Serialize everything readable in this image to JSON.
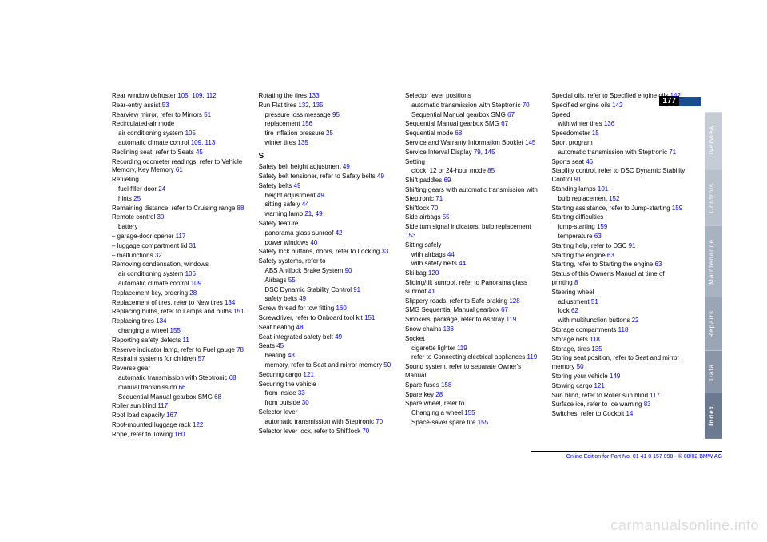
{
  "page_number": "177",
  "side_tabs": [
    "Overview",
    "Controls",
    "Maintenance",
    "Repairs",
    "Data",
    "Index"
  ],
  "footer": "Online Edition for Part No. 01 41 0 157 098 - © 08/02 BMW AG",
  "watermark": "carmanualsonline.info",
  "columns": [
    [
      {
        "t": "Rear window defroster",
        "p": [
          "105",
          "109",
          "112"
        ]
      },
      {
        "t": "Rear-entry assist",
        "p": [
          "53"
        ]
      },
      {
        "t": "Rearview mirror, refer to Mirrors",
        "p": [
          "51"
        ]
      },
      {
        "t": "Recirculated-air mode"
      },
      {
        "t": " air conditioning system",
        "p": [
          "105"
        ]
      },
      {
        "t": " automatic climate control",
        "p": [
          "109",
          "113"
        ]
      },
      {
        "t": "Reclining seat, refer to Seats",
        "p": [
          "45"
        ]
      },
      {
        "t": "Recording odometer readings, refer to Vehicle Memory, Key Memory",
        "p": [
          "61"
        ]
      },
      {
        "t": "Refueling"
      },
      {
        "t": " fuel filler door",
        "p": [
          "24"
        ]
      },
      {
        "t": " hints",
        "p": [
          "25"
        ]
      },
      {
        "t": "Remaining distance, refer to Cruising range",
        "p": [
          "88"
        ]
      },
      {
        "t": "Remote control",
        "p": [
          "30"
        ]
      },
      {
        "t": " battery"
      },
      {
        "t": "– garage-door opener",
        "p": [
          "117"
        ]
      },
      {
        "t": "– luggage compartment lid",
        "p": [
          "31"
        ]
      },
      {
        "t": "– malfunctions",
        "p": [
          "32"
        ]
      },
      {
        "t": "Removing condensation, windows"
      },
      {
        "t": " air conditioning system",
        "p": [
          "106"
        ]
      },
      {
        "t": " automatic climate control",
        "p": [
          "109"
        ]
      },
      {
        "t": "Replacement key, ordering",
        "p": [
          "28"
        ]
      },
      {
        "t": "Replacement of tires, refer to New tires",
        "p": [
          "134"
        ]
      },
      {
        "t": "Replacing bulbs, refer to Lamps and bulbs",
        "p": [
          "151"
        ]
      },
      {
        "t": "Replacing tires",
        "p": [
          "134"
        ]
      },
      {
        "t": " changing a wheel",
        "p": [
          "155"
        ]
      },
      {
        "t": "Reporting safety defects",
        "p": [
          "11"
        ]
      },
      {
        "t": "Reserve indicator lamp, refer to Fuel gauge",
        "p": [
          "78"
        ]
      },
      {
        "t": "Restraint systems for children",
        "p": [
          "57"
        ]
      },
      {
        "t": "Reverse gear"
      },
      {
        "t": " automatic transmission with Steptronic",
        "p": [
          "68"
        ]
      },
      {
        "t": " manual transmission",
        "p": [
          "66"
        ]
      },
      {
        "t": " Sequential Manual gearbox SMG",
        "p": [
          "68"
        ]
      },
      {
        "t": "Roller sun blind",
        "p": [
          "117"
        ]
      },
      {
        "t": "Roof load capacity",
        "p": [
          "167"
        ]
      },
      {
        "t": "Roof-mounted luggage rack",
        "p": [
          "122"
        ]
      },
      {
        "t": "Rope, refer to Towing",
        "p": [
          "160"
        ]
      }
    ],
    [
      {
        "t": "Rotating the tires",
        "p": [
          "133"
        ]
      },
      {
        "t": "Run Flat tires",
        "p": [
          "132",
          "135"
        ]
      },
      {
        "t": " pressure loss message",
        "p": [
          "95"
        ]
      },
      {
        "t": " replacement",
        "p": [
          "156"
        ]
      },
      {
        "t": " tire inflation pressure",
        "p": [
          "25"
        ]
      },
      {
        "t": " winter tires",
        "p": [
          "135"
        ]
      },
      {
        "t": ""
      },
      {
        "t": "S",
        "letter": true
      },
      {
        "t": "Safety belt height adjustment",
        "p": [
          "49"
        ]
      },
      {
        "t": "Safety belt tensioner, refer to Safety belts",
        "p": [
          "49"
        ]
      },
      {
        "t": "Safety belts",
        "p": [
          "49"
        ]
      },
      {
        "t": " height adjustment",
        "p": [
          "49"
        ]
      },
      {
        "t": " sitting safely",
        "p": [
          "44"
        ]
      },
      {
        "t": " warning lamp",
        "p": [
          "21",
          "49"
        ]
      },
      {
        "t": "Safety feature"
      },
      {
        "t": " panorama glass sunroof",
        "p": [
          "42"
        ]
      },
      {
        "t": " power windows",
        "p": [
          "40"
        ]
      },
      {
        "t": "Safety lock buttons, doors, refer to Locking",
        "p": [
          "33"
        ]
      },
      {
        "t": "Safety systems, refer to"
      },
      {
        "t": " ABS Antilock Brake System",
        "p": [
          "90"
        ]
      },
      {
        "t": " Airbags",
        "p": [
          "55"
        ]
      },
      {
        "t": " DSC Dynamic Stability Control",
        "p": [
          "91"
        ]
      },
      {
        "t": " safety belts",
        "p": [
          "49"
        ]
      },
      {
        "t": "Screw thread for tow fitting",
        "p": [
          "160"
        ]
      },
      {
        "t": "Screwdriver, refer to Onboard tool kit",
        "p": [
          "151"
        ]
      },
      {
        "t": "Seat heating",
        "p": [
          "48"
        ]
      },
      {
        "t": "Seat-integrated safety belt",
        "p": [
          "49"
        ]
      },
      {
        "t": "Seats",
        "p": [
          "45"
        ]
      },
      {
        "t": " heating",
        "p": [
          "48"
        ]
      },
      {
        "t": " memory, refer to Seat and mirror memory",
        "p": [
          "50"
        ]
      },
      {
        "t": "Securing cargo",
        "p": [
          "121"
        ]
      },
      {
        "t": "Securing the vehicle"
      },
      {
        "t": " from inside",
        "p": [
          "33"
        ]
      },
      {
        "t": " from outside",
        "p": [
          "30"
        ]
      },
      {
        "t": "Selector lever"
      },
      {
        "t": " automatic transmission with Steptronic",
        "p": [
          "70"
        ]
      },
      {
        "t": "Selector lever lock, refer to Shiftlock",
        "p": [
          "70"
        ]
      }
    ],
    [
      {
        "t": "Selector lever positions"
      },
      {
        "t": " automatic transmission with Steptronic",
        "p": [
          "70"
        ]
      },
      {
        "t": " Sequential Manual gearbox SMG",
        "p": [
          "67"
        ]
      },
      {
        "t": "Sequential Manual gearbox SMG",
        "p": [
          "67"
        ]
      },
      {
        "t": "Sequential mode",
        "p": [
          "68"
        ]
      },
      {
        "t": "Service and Warranty Information Booklet",
        "p": [
          "145"
        ]
      },
      {
        "t": "Service Interval Display",
        "p": [
          "79",
          "145"
        ]
      },
      {
        "t": "Setting"
      },
      {
        "t": " clock, 12 or 24-hour mode",
        "p": [
          "85"
        ]
      },
      {
        "t": "Shift paddles",
        "p": [
          "69"
        ]
      },
      {
        "t": "Shifting gears with automatic transmission with Steptronic",
        "p": [
          "71"
        ]
      },
      {
        "t": "Shiftlock",
        "p": [
          "70"
        ]
      },
      {
        "t": "Side airbags",
        "p": [
          "55"
        ]
      },
      {
        "t": "Side turn signal indicators, bulb replacement",
        "p": [
          "153"
        ]
      },
      {
        "t": "Sitting safely"
      },
      {
        "t": " with airbags",
        "p": [
          "44"
        ]
      },
      {
        "t": " with safety belts",
        "p": [
          "44"
        ]
      },
      {
        "t": "Ski bag",
        "p": [
          "120"
        ]
      },
      {
        "t": "Sliding/tilt sunroof, refer to Panorama glass sunroof",
        "p": [
          "41"
        ]
      },
      {
        "t": "Slippery roads, refer to Safe braking",
        "p": [
          "128"
        ]
      },
      {
        "t": "SMG Sequential Manual gearbox",
        "p": [
          "67"
        ]
      },
      {
        "t": "Smokers' package, refer to Ashtray",
        "p": [
          "119"
        ]
      },
      {
        "t": "Snow chains",
        "p": [
          "136"
        ]
      },
      {
        "t": "Socket"
      },
      {
        "t": " cigarette lighter",
        "p": [
          "119"
        ]
      },
      {
        "t": " refer to Connecting electrical appliances",
        "p": [
          "119"
        ]
      },
      {
        "t": "Sound system, refer to separate Owner's Manual"
      },
      {
        "t": "Spare fuses",
        "p": [
          "158"
        ]
      },
      {
        "t": "Spare key",
        "p": [
          "28"
        ]
      },
      {
        "t": "Spare wheel, refer to"
      },
      {
        "t": " Changing a wheel",
        "p": [
          "155"
        ]
      },
      {
        "t": " Space-saver spare tire",
        "p": [
          "155"
        ]
      }
    ],
    [
      {
        "t": "Special oils, refer to Specified engine oils",
        "p": [
          "142"
        ]
      },
      {
        "t": "Specified engine oils",
        "p": [
          "142"
        ]
      },
      {
        "t": "Speed"
      },
      {
        "t": " with winter tires",
        "p": [
          "136"
        ]
      },
      {
        "t": "Speedometer",
        "p": [
          "15"
        ]
      },
      {
        "t": "Sport program"
      },
      {
        "t": " automatic transmission with Steptronic",
        "p": [
          "71"
        ]
      },
      {
        "t": "Sports seat",
        "p": [
          "46"
        ]
      },
      {
        "t": "Stability control, refer to DSC Dynamic Stability Control",
        "p": [
          "91"
        ]
      },
      {
        "t": "Standing lamps",
        "p": [
          "101"
        ]
      },
      {
        "t": " bulb replacement",
        "p": [
          "152"
        ]
      },
      {
        "t": "Starting assistance, refer to Jump-starting",
        "p": [
          "159"
        ]
      },
      {
        "t": "Starting difficulties"
      },
      {
        "t": " jump-starting",
        "p": [
          "159"
        ]
      },
      {
        "t": " temperature",
        "p": [
          "63"
        ]
      },
      {
        "t": "Starting help, refer to DSC",
        "p": [
          "91"
        ]
      },
      {
        "t": "Starting the engine",
        "p": [
          "63"
        ]
      },
      {
        "t": "Starting, refer to Starting the engine",
        "p": [
          "63"
        ]
      },
      {
        "t": "Status of this Owner's Manual at time of printing",
        "p": [
          "8"
        ]
      },
      {
        "t": "Steering wheel"
      },
      {
        "t": " adjustment",
        "p": [
          "51"
        ]
      },
      {
        "t": " lock",
        "p": [
          "62"
        ]
      },
      {
        "t": " with multifunction buttons",
        "p": [
          "22"
        ]
      },
      {
        "t": "Storage compartments",
        "p": [
          "118"
        ]
      },
      {
        "t": "Storage nets",
        "p": [
          "118"
        ]
      },
      {
        "t": "Storage, tires",
        "p": [
          "135"
        ]
      },
      {
        "t": "Storing seat position, refer to Seat and mirror memory",
        "p": [
          "50"
        ]
      },
      {
        "t": "Storing your vehicle",
        "p": [
          "149"
        ]
      },
      {
        "t": "Stowing cargo",
        "p": [
          "121"
        ]
      },
      {
        "t": "Sun blind, refer to Roller sun blind",
        "p": [
          "117"
        ]
      },
      {
        "t": "Surface ice, refer to Ice warning",
        "p": [
          "83"
        ]
      },
      {
        "t": "Switches, refer to Cockpit",
        "p": [
          "14"
        ]
      }
    ]
  ]
}
